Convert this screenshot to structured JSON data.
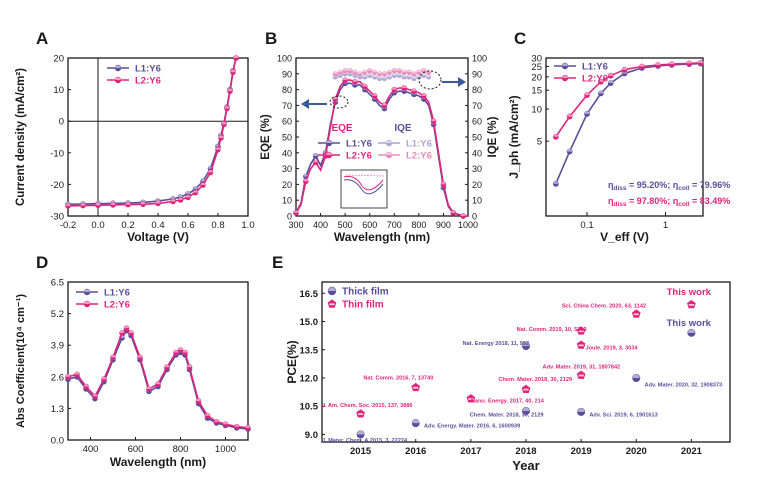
{
  "figure_title": "",
  "colors": {
    "purple": "#5a4e9c",
    "pink": "#e0247a",
    "pink_light": "#e88bb8",
    "purple_light": "#b1a4d6",
    "blue_arrow": "#3a5a9c",
    "gray": "#555555"
  },
  "chart_data": [
    {
      "panel": "A",
      "type": "line",
      "xlabel": "Voltage (V)",
      "ylabel": "Current density (mA/cm²)",
      "xlim": [
        -0.2,
        1.0
      ],
      "ylim": [
        -30,
        20
      ],
      "xticks": [
        "-0.2",
        "0.0",
        "0.2",
        "0.4",
        "0.6",
        "0.8",
        "1.0"
      ],
      "yticks": [
        "-30",
        "-20",
        "-10",
        "0",
        "10",
        "20"
      ],
      "series": [
        {
          "name": "L1:Y6",
          "x": [
            -0.2,
            -0.1,
            0.0,
            0.1,
            0.2,
            0.3,
            0.4,
            0.5,
            0.55,
            0.6,
            0.65,
            0.7,
            0.75,
            0.8,
            0.82,
            0.84,
            0.86,
            0.88,
            0.9,
            0.92
          ],
          "y": [
            -26.3,
            -26.2,
            -26.1,
            -26.0,
            -25.9,
            -25.7,
            -25.3,
            -24.6,
            -24.0,
            -23.0,
            -21.5,
            -19.0,
            -15.0,
            -8.0,
            -4.5,
            -0.5,
            4.5,
            10.0,
            16.0,
            22.0
          ]
        },
        {
          "name": "L2:Y6",
          "x": [
            -0.2,
            -0.1,
            0.0,
            0.1,
            0.2,
            0.3,
            0.4,
            0.5,
            0.55,
            0.6,
            0.65,
            0.7,
            0.75,
            0.8,
            0.82,
            0.84,
            0.86,
            0.88,
            0.9,
            0.92
          ],
          "y": [
            -26.8,
            -26.7,
            -26.6,
            -26.5,
            -26.4,
            -26.3,
            -26.0,
            -25.4,
            -24.9,
            -24.1,
            -22.6,
            -20.2,
            -16.2,
            -9.0,
            -5.3,
            -1.0,
            4.0,
            9.5,
            15.5,
            21.5
          ]
        }
      ]
    },
    {
      "panel": "B",
      "type": "line",
      "xlabel": "Wavelength (nm)",
      "ylabel": "EQE (%)",
      "ylabel2": "IQE (%)",
      "xlim": [
        300,
        1000
      ],
      "ylim": [
        0,
        100
      ],
      "ylim2": [
        0,
        100
      ],
      "xticks": [
        "300",
        "400",
        "500",
        "600",
        "700",
        "800",
        "900",
        "1000"
      ],
      "yticks": [
        "0",
        "10",
        "20",
        "30",
        "40",
        "50",
        "60",
        "70",
        "80",
        "90",
        "100"
      ],
      "annot_left": "EQE",
      "annot_right": "IQE",
      "series": [
        {
          "name": "L1:Y6",
          "kind": "EQE",
          "x": [
            300,
            320,
            340,
            360,
            380,
            400,
            420,
            440,
            460,
            480,
            500,
            520,
            540,
            560,
            580,
            600,
            620,
            640,
            660,
            680,
            700,
            720,
            740,
            760,
            780,
            800,
            820,
            840,
            860,
            880,
            900,
            920,
            940,
            960,
            980,
            1000
          ],
          "y": [
            2,
            8,
            25,
            33,
            38,
            32,
            40,
            58,
            72,
            80,
            84,
            84,
            83,
            83,
            80,
            77,
            74,
            70,
            68,
            74,
            78,
            79,
            79,
            78,
            77,
            76,
            74,
            70,
            58,
            38,
            18,
            6,
            2,
            1,
            0,
            0
          ]
        },
        {
          "name": "L2:Y6",
          "kind": "EQE",
          "x": [
            300,
            320,
            340,
            360,
            380,
            400,
            420,
            440,
            460,
            480,
            500,
            520,
            540,
            560,
            580,
            600,
            620,
            640,
            660,
            680,
            700,
            720,
            740,
            760,
            780,
            800,
            820,
            840,
            860,
            880,
            900,
            920,
            940,
            960,
            980,
            1000
          ],
          "y": [
            2,
            7,
            22,
            30,
            34,
            29,
            38,
            56,
            74,
            82,
            86,
            86,
            85,
            85,
            82,
            79,
            76,
            72,
            70,
            76,
            80,
            81,
            81,
            80,
            79,
            78,
            76,
            72,
            60,
            40,
            20,
            7,
            2,
            1,
            0,
            0
          ]
        },
        {
          "name": "L1:Y6",
          "kind": "IQE",
          "x": [
            460,
            480,
            500,
            520,
            540,
            560,
            580,
            600,
            620,
            640,
            660,
            680,
            700,
            720,
            740,
            760,
            780,
            800,
            820,
            840
          ],
          "y": [
            88,
            89,
            90,
            90,
            89,
            88,
            88,
            89,
            88,
            87,
            87,
            88,
            89,
            89,
            88,
            88,
            87,
            88,
            89,
            88
          ]
        },
        {
          "name": "L2:Y6",
          "kind": "IQE",
          "x": [
            460,
            480,
            500,
            520,
            540,
            560,
            580,
            600,
            620,
            640,
            660,
            680,
            700,
            720,
            740,
            760,
            780,
            800,
            820,
            840
          ],
          "y": [
            90,
            91,
            92,
            92,
            91,
            90,
            91,
            92,
            91,
            90,
            90,
            91,
            92,
            92,
            91,
            91,
            90,
            91,
            92,
            91
          ]
        }
      ]
    },
    {
      "panel": "C",
      "type": "line",
      "xlabel": "V_eff (V)",
      "ylabel": "J_ph (mA/cm²)",
      "xscale": "log",
      "yscale": "log",
      "xlim": [
        0.03,
        3
      ],
      "ylim": [
        1,
        30
      ],
      "xticks": [
        "0.1",
        "1"
      ],
      "yticks": [
        "5",
        "10",
        "15",
        "20",
        "25",
        "30"
      ],
      "series": [
        {
          "name": "L1:Y6",
          "x": [
            0.04,
            0.06,
            0.1,
            0.15,
            0.2,
            0.3,
            0.5,
            0.8,
            1.2,
            2.0,
            2.8
          ],
          "y": [
            2.0,
            4.0,
            9.0,
            14.0,
            17.5,
            21.5,
            24.2,
            25.3,
            25.9,
            26.3,
            26.6
          ]
        },
        {
          "name": "L2:Y6",
          "x": [
            0.04,
            0.06,
            0.1,
            0.15,
            0.2,
            0.3,
            0.5,
            0.8,
            1.2,
            2.0,
            2.8
          ],
          "y": [
            5.5,
            8.5,
            13.5,
            18.0,
            20.5,
            23.3,
            25.0,
            25.8,
            26.3,
            26.7,
            27.0
          ]
        }
      ],
      "annotations": [
        {
          "parts": [
            "η",
            "diss",
            " = 95.20%;  η",
            "coll",
            " = 79.96%"
          ],
          "series": "L1:Y6"
        },
        {
          "parts": [
            "η",
            "diss",
            " = 97.80%;  η",
            "coll",
            " = 83.49%"
          ],
          "series": "L2:Y6"
        }
      ]
    },
    {
      "panel": "D",
      "type": "line",
      "xlabel": "Wavelength (nm)",
      "ylabel": "Abs Coefficient(10⁴ cm⁻¹)",
      "xlim": [
        300,
        1100
      ],
      "ylim": [
        0,
        6.5
      ],
      "xticks": [
        "400",
        "600",
        "800",
        "1000"
      ],
      "yticks": [
        "0.0",
        "1.3",
        "2.6",
        "3.9",
        "5.2",
        "6.5"
      ],
      "series": [
        {
          "name": "L1:Y6",
          "x": [
            300,
            340,
            380,
            420,
            460,
            500,
            540,
            560,
            580,
            620,
            660,
            700,
            740,
            780,
            800,
            820,
            840,
            880,
            920,
            960,
            1000,
            1050,
            1100
          ],
          "y": [
            2.5,
            2.6,
            2.1,
            1.7,
            2.4,
            3.3,
            4.2,
            4.5,
            4.3,
            3.3,
            2.0,
            2.2,
            2.9,
            3.5,
            3.6,
            3.5,
            2.9,
            1.5,
            0.9,
            0.7,
            0.6,
            0.5,
            0.45
          ]
        },
        {
          "name": "L2:Y6",
          "x": [
            300,
            340,
            380,
            420,
            460,
            500,
            540,
            560,
            580,
            620,
            660,
            700,
            740,
            780,
            800,
            820,
            840,
            880,
            920,
            960,
            1000,
            1050,
            1100
          ],
          "y": [
            2.6,
            2.7,
            2.2,
            1.8,
            2.5,
            3.4,
            4.4,
            4.6,
            4.4,
            3.4,
            2.1,
            2.3,
            3.0,
            3.6,
            3.7,
            3.6,
            3.0,
            1.6,
            1.0,
            0.75,
            0.65,
            0.55,
            0.5
          ]
        }
      ]
    },
    {
      "panel": "E",
      "type": "scatter",
      "xlabel": "Year",
      "ylabel": "PCE(%)",
      "xlim": [
        2014.3,
        2021.7
      ],
      "ylim": [
        8.6,
        17.1
      ],
      "xticks": [
        "2015",
        "2016",
        "2017",
        "2018",
        "2019",
        "2020",
        "2021"
      ],
      "yticks": [
        "9.0",
        "10.5",
        "12.0",
        "13.5",
        "15.0",
        "16.5"
      ],
      "legend": [
        "Thick film",
        "Thin  film"
      ],
      "series": [
        {
          "name": "Thick film",
          "points": [
            {
              "x": 2015,
              "y": 9.0,
              "label": "J. Mater. Chem. A 2015, 3, 22274",
              "lx": 2014.3,
              "ly": 8.72
            },
            {
              "x": 2016,
              "y": 9.6,
              "label": "Adv. Energy. Mater. 2016, 6, 1600939",
              "lx": 2016.15,
              "ly": 9.5
            },
            {
              "x": 2018,
              "y": 10.25,
              "label": "Chem. Mater. 2018, 30, 2129",
              "lx": 2016.98,
              "ly": 10.1
            },
            {
              "x": 2018,
              "y": 13.7,
              "label": "Nat. Energy 2018, 11, 952",
              "lx": 2016.85,
              "ly": 13.88
            },
            {
              "x": 2019,
              "y": 10.2,
              "label": "Adv. Sci. 2019, 6, 1901613",
              "lx": 2019.15,
              "ly": 10.1
            },
            {
              "x": 2020,
              "y": 12.0,
              "label": "Adv. Mater. 2020, 32, 1908373",
              "lx": 2020.15,
              "ly": 11.67
            },
            {
              "x": 2021,
              "y": 14.4,
              "label": "This work",
              "lx": 2020.55,
              "ly": 14.9
            }
          ]
        },
        {
          "name": "Thin  film",
          "points": [
            {
              "x": 2015,
              "y": 10.1,
              "label": "J. Am. Chem. Soc. 2015, 137, 3886",
              "lx": 2014.3,
              "ly": 10.58
            },
            {
              "x": 2016,
              "y": 11.5,
              "label": "Nat. Comm. 2016, 7, 13740",
              "lx": 2015.05,
              "ly": 12.05
            },
            {
              "x": 2017,
              "y": 10.9,
              "label": "Nano. Energy. 2017, 40, 214",
              "lx": 2017.0,
              "ly": 10.82
            },
            {
              "x": 2018,
              "y": 11.4,
              "label": "Chem. Mater. 2018, 30, 2129",
              "lx": 2017.5,
              "ly": 11.98
            },
            {
              "x": 2019,
              "y": 14.5,
              "label": "Nat. Comm. 2019, 10, 5393",
              "lx": 2017.83,
              "ly": 14.64
            },
            {
              "x": 2019,
              "y": 13.75,
              "label": "Joule. 2019, 3, 3034",
              "lx": 2019.08,
              "ly": 13.65
            },
            {
              "x": 2019,
              "y": 12.15,
              "label": "Adv. Mater. 2019, 31, 1807842",
              "lx": 2018.3,
              "ly": 12.65
            },
            {
              "x": 2020,
              "y": 15.4,
              "label": "Sci. China Chem. 2020, 63, 1142",
              "lx": 2018.65,
              "ly": 15.88
            },
            {
              "x": 2021,
              "y": 15.9,
              "label": "This work",
              "lx": 2020.55,
              "ly": 16.55
            }
          ]
        }
      ]
    }
  ]
}
